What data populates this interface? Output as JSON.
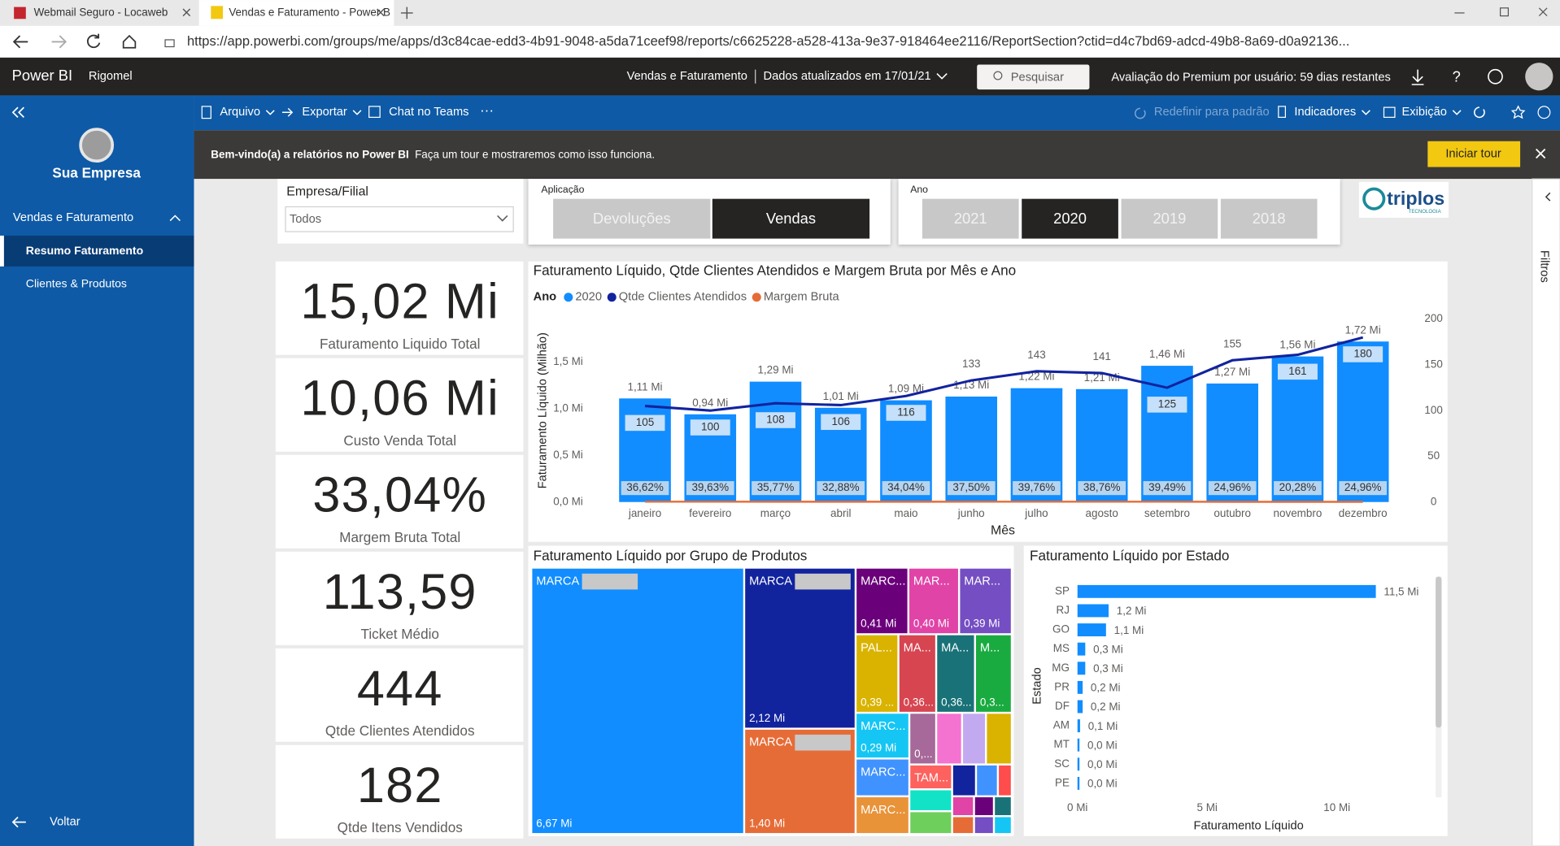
{
  "browser": {
    "tabs": [
      "Webmail Seguro - Locaweb",
      "Vendas e Faturamento - Power B"
    ],
    "url": "https://app.powerbi.com/groups/me/apps/d3c84cae-edd3-4b91-9048-a5da71ceef98/reports/c6625228-a528-413a-9e37-918464ee2116/ReportSection?ctid=d4c7bd69-adcd-49b8-8a69-d0a92136..."
  },
  "appbar": {
    "brand": "Power BI",
    "workspace": "Rigomel",
    "report": "Vendas e Faturamento",
    "updated": "Dados atualizados em 17/01/21",
    "search": "Pesquisar",
    "trial": "Avaliação do Premium por usuário: 59 dias restantes"
  },
  "sidebar": {
    "company": "Sua Empresa",
    "section": "Vendas e Faturamento",
    "pages": [
      "Resumo Faturamento",
      "Clientes & Produtos"
    ],
    "back": "Voltar"
  },
  "toolbar": {
    "left": [
      "Arquivo",
      "Exportar",
      "Chat no Teams"
    ],
    "right": [
      "Redefinir para padrão",
      "Indicadores",
      "Exibição"
    ]
  },
  "banner": {
    "title": "Bem-vindo(a) a relatórios no Power BI",
    "text": "Faça um tour e mostraremos como isso funciona.",
    "button": "Iniciar tour"
  },
  "filters_pane": "Filtros",
  "slicers": {
    "empresa": {
      "label": "Empresa/Filial",
      "value": "Todos"
    },
    "aplicacao": {
      "label": "Aplicação",
      "options": [
        "Devoluções",
        "Vendas"
      ],
      "selected": 1
    },
    "ano": {
      "label": "Ano",
      "options": [
        "2021",
        "2020",
        "2019",
        "2018"
      ],
      "selected": 1
    }
  },
  "logo": {
    "name": "triplos",
    "tagline": "TECNOLOGIA"
  },
  "kpis": [
    {
      "value": "15,02 Mi",
      "label": "Faturamento Liquido Total"
    },
    {
      "value": "10,06 Mi",
      "label": "Custo Venda Total"
    },
    {
      "value": "33,04%",
      "label": "Margem Bruta Total"
    },
    {
      "value": "113,59",
      "label": "Ticket Médio"
    },
    {
      "value": "444",
      "label": "Qtde Clientes Atendidos"
    },
    {
      "value": "182",
      "label": "Qtde Itens Vendidos"
    }
  ],
  "charts": {
    "monthly": {
      "type": "combo",
      "title": "Faturamento Líquido, Qtde Clientes Atendidos e Margem Bruta por Mês e Ano",
      "legend_title": "Ano",
      "categories": [
        "janeiro",
        "fevereiro",
        "março",
        "abril",
        "maio",
        "junho",
        "julho",
        "agosto",
        "setembro",
        "outubro",
        "novembro",
        "dezembro"
      ],
      "ylabel": "Faturamento Líquido (Milhão)",
      "xlabel": "Mês",
      "ylim": [
        0,
        1.96
      ],
      "yticks": [
        {
          "value": 0,
          "label": "0,0 Mi"
        },
        {
          "value": 0.5,
          "label": "0,5 Mi"
        },
        {
          "value": 1,
          "label": "1,0 Mi"
        },
        {
          "value": 1.5,
          "label": "1,5 Mi"
        }
      ],
      "y2lim": [
        0,
        200
      ],
      "y2ticks": [
        0,
        50,
        100,
        150,
        200
      ],
      "series": [
        {
          "name": "2020",
          "type": "bar",
          "color": "#118dff",
          "values": [
            1.11,
            0.94,
            1.29,
            1.01,
            1.09,
            1.13,
            1.22,
            1.21,
            1.46,
            1.27,
            1.56,
            1.72
          ],
          "value_labels": [
            "1,11 Mi",
            "0,94 Mi",
            "1,29 Mi",
            "1,01 Mi",
            "1,09 Mi",
            "1,13 Mi",
            "1,22 Mi",
            "1,21 Mi",
            "1,46 Mi",
            "1,27 Mi",
            "1,56 Mi",
            "1,72 Mi"
          ]
        },
        {
          "name": "Qtde Clientes Atendidos",
          "type": "line",
          "axis": "y2",
          "color": "#12239e",
          "values": [
            105,
            100,
            108,
            106,
            116,
            133,
            143,
            141,
            125,
            155,
            161,
            180
          ]
        },
        {
          "name": "Margem Bruta",
          "type": "line",
          "axis": "y2",
          "color": "#e66c37",
          "values": [
            0.3662,
            0.3963,
            0.3577,
            0.3288,
            0.3404,
            0.375,
            0.3976,
            0.3876,
            0.3949,
            0.2496,
            0.2028,
            0.2496
          ],
          "value_labels": [
            "36,62%",
            "39,63%",
            "35,77%",
            "32,88%",
            "34,04%",
            "37,50%",
            "39,76%",
            "38,76%",
            "39,49%",
            "24,96%",
            "20,28%",
            "24,96%"
          ]
        }
      ]
    },
    "products": {
      "type": "treemap",
      "title": "Faturamento Líquido por Grupo de Produtos",
      "items": [
        {
          "name": "MARCA",
          "value": 6.67,
          "value_label": "6,67 Mi",
          "color": "#118dff"
        },
        {
          "name": "MARCA",
          "value": 2.12,
          "value_label": "2,12 Mi",
          "color": "#12239e"
        },
        {
          "name": "MARCA",
          "value": 1.4,
          "value_label": "1,40 Mi",
          "color": "#e66c37"
        },
        {
          "name": "MARC...",
          "value": 0.41,
          "value_label": "0,41 Mi",
          "color": "#6b007b"
        },
        {
          "name": "MAR...",
          "value": 0.4,
          "value_label": "0,40 Mi",
          "color": "#e044a7"
        },
        {
          "name": "MAR...",
          "value": 0.39,
          "value_label": "0,39 Mi",
          "color": "#744ec2"
        },
        {
          "name": "PAL...",
          "value": 0.39,
          "value_label": "0,39 ...",
          "color": "#d9b300"
        },
        {
          "name": "MA...",
          "value": 0.36,
          "value_label": "0,36...",
          "color": "#d64550"
        },
        {
          "name": "MA...",
          "value": 0.36,
          "value_label": "0,36...",
          "color": "#197278"
        },
        {
          "name": "M...",
          "value": 0.33,
          "value_label": "0,3...",
          "color": "#1aab40"
        },
        {
          "name": "MARC...",
          "value": 0.29,
          "value_label": "0,29 Mi",
          "color": "#15c6f4"
        },
        {
          "value": 0.24,
          "value_label": "0,...",
          "color": "#a66999"
        },
        {
          "name": "MARC...",
          "value": 0.22,
          "color": "#4092ff"
        },
        {
          "name": "TAM...",
          "value": 0.18,
          "color": "#fd625e"
        },
        {
          "name": "MARC...",
          "value": 0.2,
          "color": "#e99339"
        }
      ]
    },
    "states": {
      "type": "bar",
      "orientation": "horizontal",
      "title": "Faturamento Líquido por Estado",
      "categories": [
        "SP",
        "RJ",
        "GO",
        "MS",
        "MG",
        "PR",
        "DF",
        "AM",
        "MT",
        "SC",
        "PE"
      ],
      "values": [
        11.5,
        1.2,
        1.1,
        0.3,
        0.3,
        0.2,
        0.2,
        0.1,
        0.0,
        0.0,
        0.0
      ],
      "value_labels": [
        "11,5 Mi",
        "1,2 Mi",
        "1,1 Mi",
        "0,3 Mi",
        "0,3 Mi",
        "0,2 Mi",
        "0,2 Mi",
        "0,1 Mi",
        "0,0 Mi",
        "0,0 Mi",
        "0,0 Mi"
      ],
      "color": "#118dff",
      "xlim": [
        0,
        13
      ],
      "xticks": [
        {
          "value": 0,
          "label": "0 Mi"
        },
        {
          "value": 5,
          "label": "5 Mi"
        },
        {
          "value": 10,
          "label": "10 Mi"
        }
      ],
      "xlabel": "Faturamento Líquido",
      "ylabel": "Estado"
    }
  }
}
